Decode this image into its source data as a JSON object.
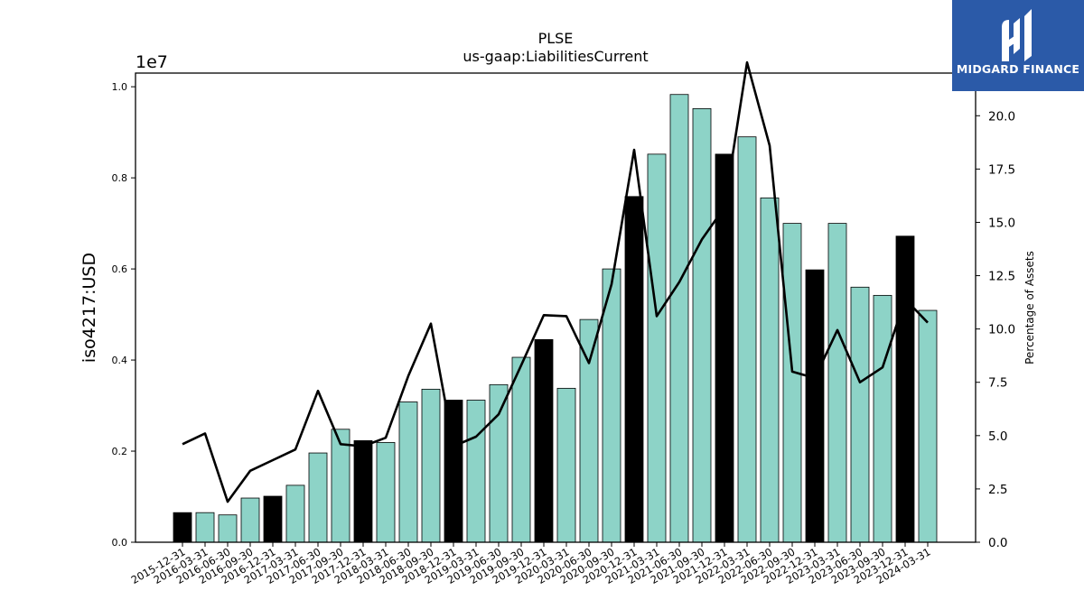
{
  "chart_data": {
    "type": "bar+line",
    "title": "PLSE",
    "subtitle": "us-gaap:LiabilitiesCurrent",
    "ylabel": "iso4217:USD",
    "y_offset_label": "1e7",
    "y2label": "Percentage of Assets",
    "ylim": [
      0,
      10300000
    ],
    "y2lim": [
      0,
      22
    ],
    "yticks": [
      0,
      2000000,
      4000000,
      6000000,
      8000000,
      10000000
    ],
    "ytick_labels": [
      "0.0",
      "0.2",
      "0.4",
      "0.6",
      "0.8",
      "1.0"
    ],
    "y2ticks": [
      0,
      2.5,
      5,
      7.5,
      10,
      12.5,
      15,
      17.5,
      20
    ],
    "y2tick_labels": [
      "0.0",
      "2.5",
      "5.0",
      "7.5",
      "10.0",
      "12.5",
      "15.0",
      "17.5",
      "20.0"
    ],
    "categories": [
      "2015-12-31",
      "2016-03-31",
      "2016-06-30",
      "2016-09-30",
      "2016-12-31",
      "2017-03-31",
      "2017-06-30",
      "2017-09-30",
      "2017-12-31",
      "2018-03-31",
      "2018-06-30",
      "2018-09-30",
      "2018-12-31",
      "2019-03-31",
      "2019-06-30",
      "2019-09-30",
      "2019-12-31",
      "2020-03-31",
      "2020-06-30",
      "2020-09-30",
      "2020-12-31",
      "2021-03-31",
      "2021-06-30",
      "2021-09-30",
      "2021-12-31",
      "2022-03-31",
      "2022-06-30",
      "2022-09-30",
      "2022-12-31",
      "2023-03-31",
      "2023-06-30",
      "2023-09-30",
      "2023-12-31",
      "2024-03-31"
    ],
    "series": [
      {
        "kind": "bar",
        "values": [
          650000,
          650000,
          600000,
          970000,
          1010000,
          1250000,
          1960000,
          2480000,
          2230000,
          2190000,
          3080000,
          3360000,
          3120000,
          3120000,
          3460000,
          4060000,
          4450000,
          3380000,
          4890000,
          6000000,
          7590000,
          8520000,
          9830000,
          9520000,
          8520000,
          8900000,
          7560000,
          7000000,
          5980000,
          7000000,
          5600000,
          5420000,
          6720000,
          5090000
        ],
        "highlight": [
          true,
          false,
          false,
          false,
          true,
          false,
          false,
          false,
          true,
          false,
          false,
          false,
          true,
          false,
          false,
          false,
          true,
          false,
          false,
          false,
          true,
          false,
          false,
          false,
          true,
          false,
          false,
          false,
          true,
          false,
          false,
          false,
          true,
          false
        ]
      },
      {
        "kind": "line",
        "axis": "right",
        "values": [
          4.6,
          5.1,
          1.9,
          3.35,
          3.85,
          4.35,
          7.1,
          4.6,
          4.5,
          4.9,
          7.8,
          10.25,
          4.5,
          4.95,
          6.0,
          8.3,
          10.65,
          10.6,
          8.4,
          12.1,
          18.4,
          10.6,
          12.2,
          14.2,
          15.7,
          22.5,
          18.6,
          8.0,
          7.7,
          9.95,
          7.5,
          8.2,
          11.4,
          10.3
        ]
      }
    ],
    "colors": {
      "bar": "#8dd3c7",
      "bar_highlight": "#000000",
      "line": "#000000",
      "bar_edge": "#000000"
    },
    "grid": false
  },
  "logo": {
    "text": "MIDGARD FINANCE",
    "background": "#2b5aa8"
  }
}
